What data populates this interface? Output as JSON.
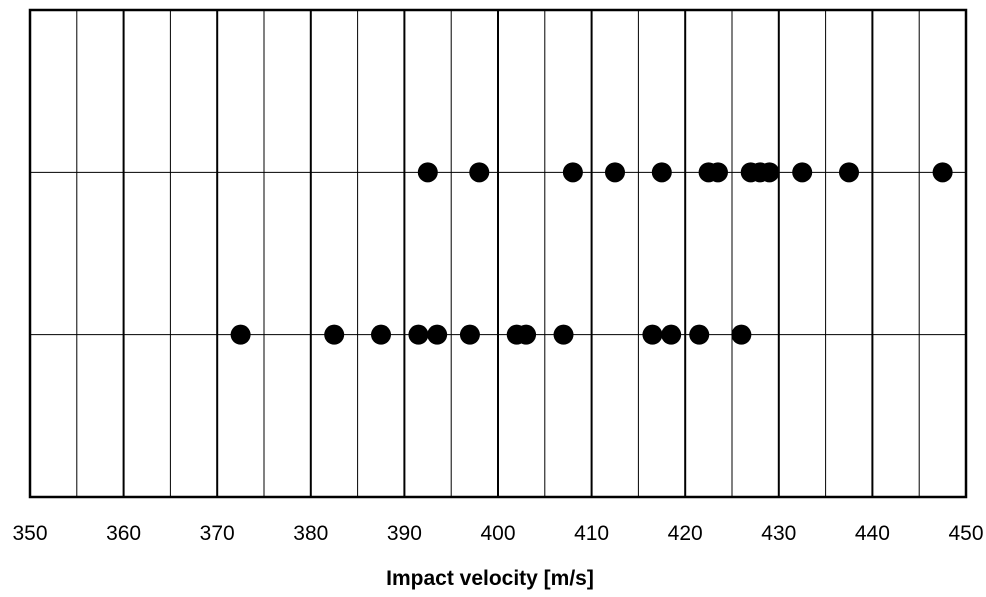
{
  "chart_data": {
    "type": "scatter",
    "title": "",
    "xlabel": "Impact velocity [m/s]",
    "ylabel": "",
    "xlim": [
      350,
      450
    ],
    "ylim": [
      0,
      3
    ],
    "x_ticks": [
      "350",
      "360",
      "370",
      "380",
      "390",
      "400",
      "410",
      "420",
      "430",
      "440",
      "450"
    ],
    "x_minor_step": 5,
    "y_gridlines": [
      1,
      2
    ],
    "grid": true,
    "legend": "none",
    "marker_color": "#000000",
    "series": [
      {
        "y": 2,
        "x": [
          392.5,
          398,
          408,
          412.5,
          417.5,
          422.5,
          423.5,
          427,
          428,
          429,
          432.5,
          437.5,
          447.5
        ]
      },
      {
        "y": 1,
        "x": [
          372.5,
          382.5,
          387.5,
          391.5,
          393.5,
          397,
          402,
          403,
          407,
          416.5,
          418.5,
          421.5,
          426
        ]
      }
    ]
  }
}
